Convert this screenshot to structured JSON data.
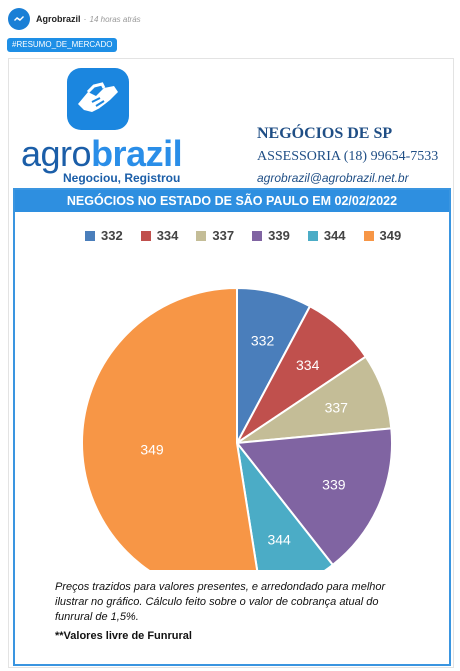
{
  "post": {
    "author": "Agrobrazil",
    "separator": "·",
    "time": "14 horas atrás",
    "tag": "#RESUMO_DE_MERCADO"
  },
  "logo": {
    "brand_part1": "agro",
    "brand_part2": "brazil",
    "slogan": "Negociou, Registrou",
    "icon": "handshake-icon"
  },
  "contact": {
    "title": "NEGÓCIOS DE SP",
    "phone": "ASSESSORIA (18) 99654-7533",
    "email": "agrobrazil@agrobrazil.net.br"
  },
  "colors": {
    "brand_dark": "#1b5ea8",
    "brand_light": "#2a8ee8",
    "banner": "#2e8fe0"
  },
  "chart_data": {
    "type": "pie",
    "title": "NEGÓCIOS NO ESTADO DE SÃO PAULO EM 02/02/2022",
    "legend_position": "top",
    "categories": [
      "332",
      "334",
      "337",
      "339",
      "344",
      "349"
    ],
    "values": [
      332,
      334,
      337,
      339,
      344,
      349
    ],
    "slice_fractions": [
      0.078,
      0.078,
      0.079,
      0.159,
      0.081,
      0.525
    ],
    "colors": [
      "#4a7ebb",
      "#c0504d",
      "#c4bd97",
      "#8064a2",
      "#4bacc6",
      "#f79646"
    ]
  },
  "notes": {
    "line1": "Preços trazidos para valores presentes, e arredondado para melhor ilustrar no gráfico. Cálculo feito sobre o valor de cobrança atual do funrural de 1,5%.",
    "line2": "**Valores livre de Funrural"
  }
}
